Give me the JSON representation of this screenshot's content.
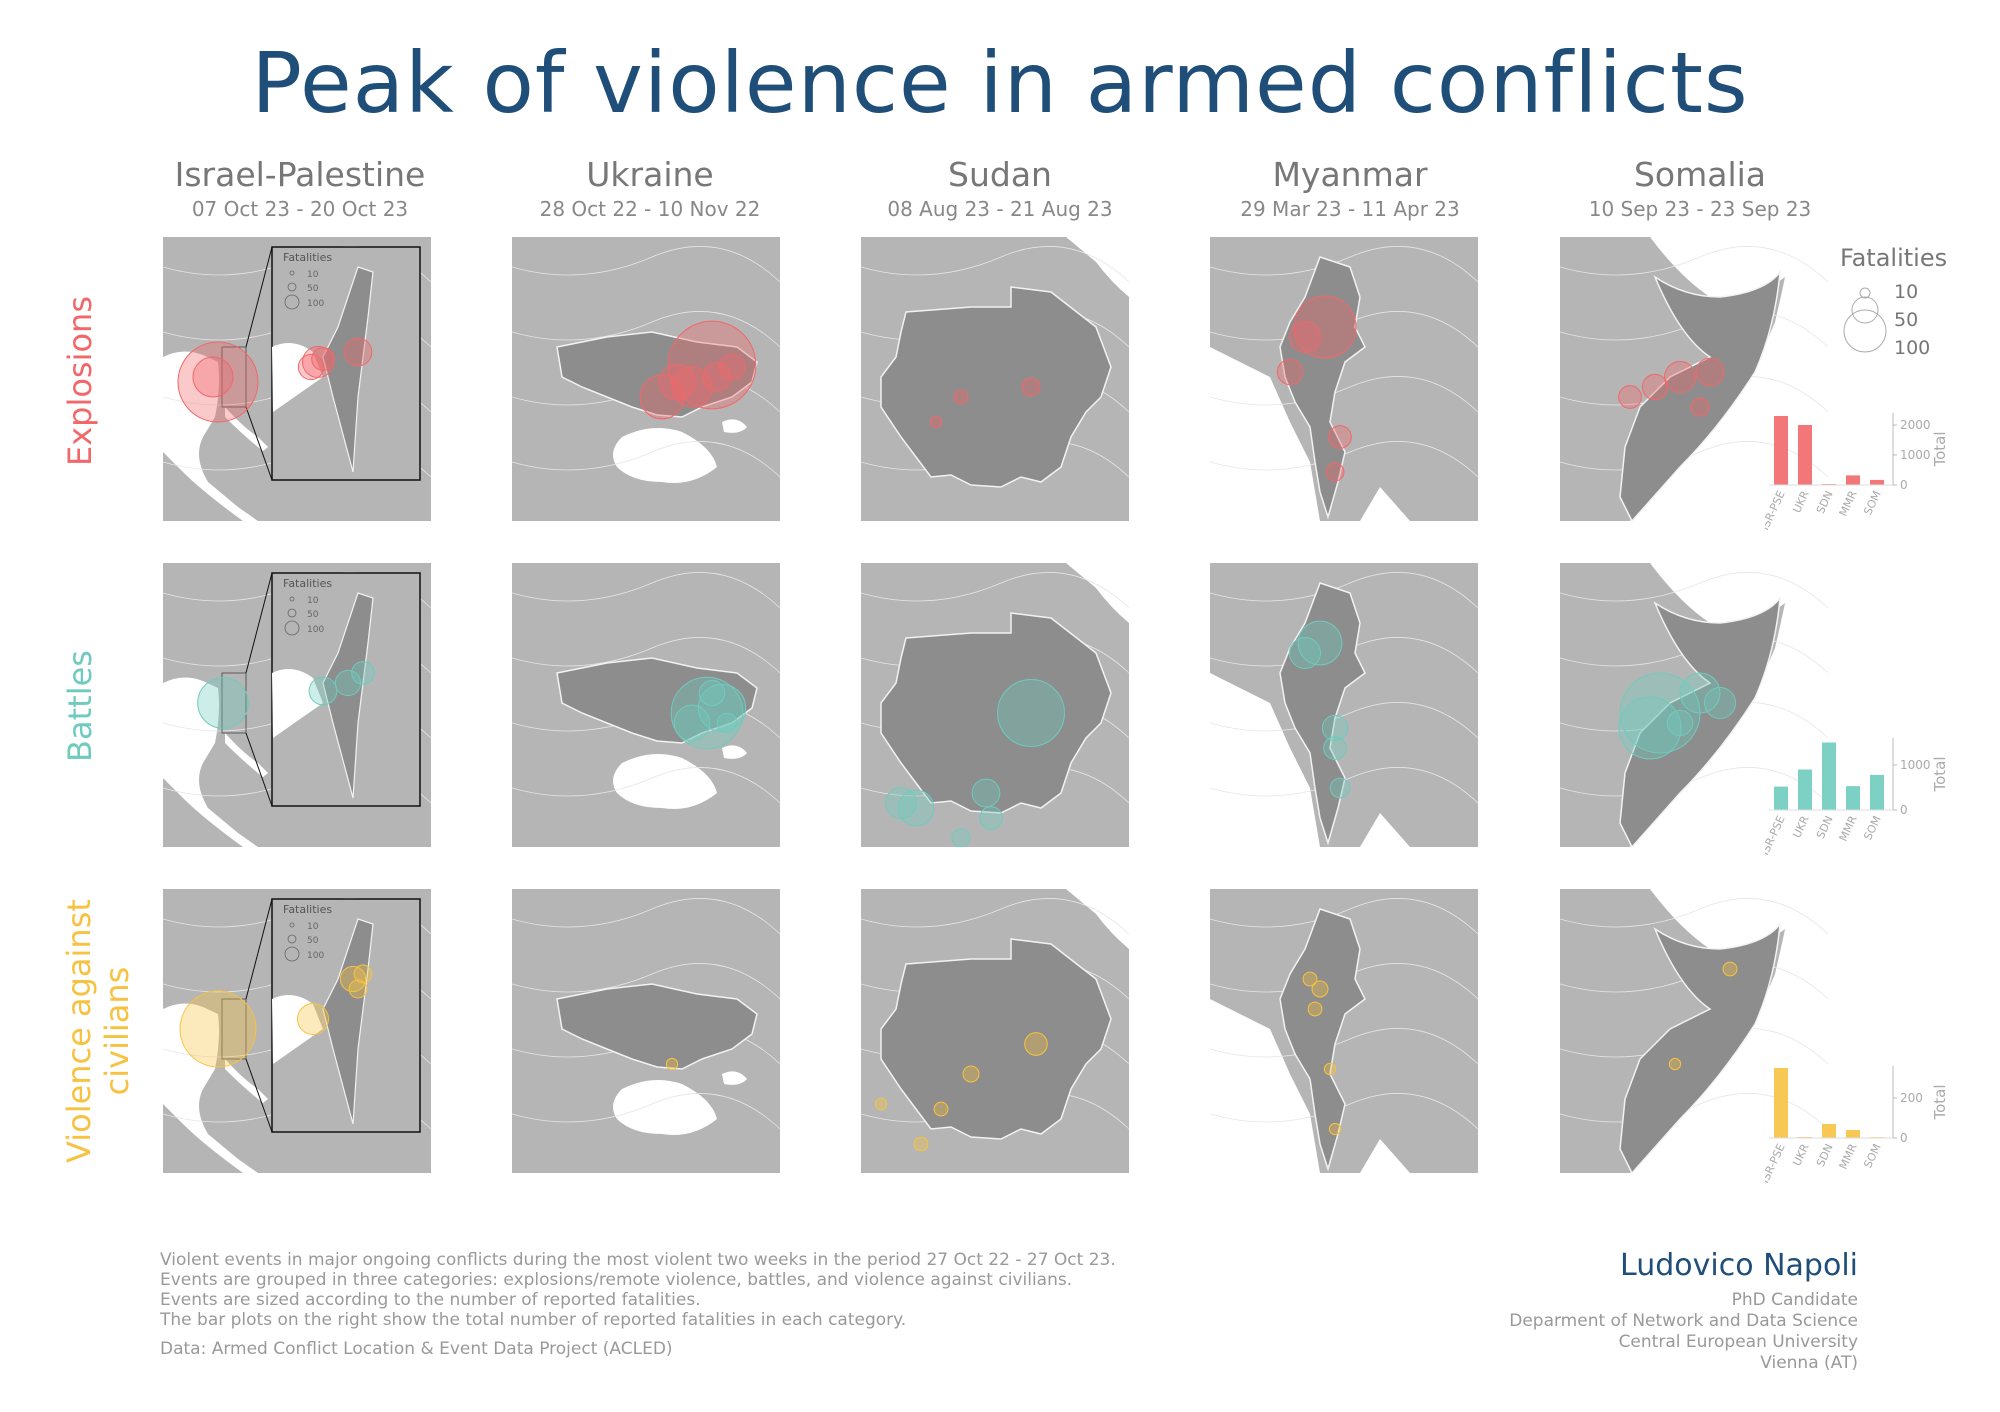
{
  "title": "Peak of violence in armed conflicts",
  "columns": [
    {
      "name": "Israel-Palestine",
      "dates": "07 Oct 23 - 20 Oct 23"
    },
    {
      "name": "Ukraine",
      "dates": "28 Oct 22 - 10 Nov 22"
    },
    {
      "name": "Sudan",
      "dates": "08 Aug 23 - 21 Aug 23"
    },
    {
      "name": "Myanmar",
      "dates": "29 Mar 23 - 11 Apr 23"
    },
    {
      "name": "Somalia",
      "dates": "10 Sep 23 - 23 Sep 23"
    }
  ],
  "rows": [
    {
      "label": "Explosions",
      "color": "#f2676a"
    },
    {
      "label": "Battles",
      "color": "#6fcbbe"
    },
    {
      "label_line1": "Violence against",
      "label_line2": "civilians",
      "color": "#f7c242"
    }
  ],
  "colors": {
    "ocean": "#adadad",
    "neighbor": "#b5b5b5",
    "country": "#8d8d8d",
    "land_border": "#e6e6e6",
    "title": "#1f4e79",
    "text_gray": "#999999"
  },
  "inset_legend": {
    "title": "Fatalities",
    "sizes": [
      "10",
      "50",
      "100"
    ]
  },
  "legend": {
    "title": "Fatalities",
    "sizes": [
      "10",
      "50",
      "100"
    ]
  },
  "chart_data": [
    {
      "type": "bar",
      "series": "Explosions",
      "categories": [
        "ISR-PSE",
        "UKR",
        "SDN",
        "MMR",
        "SOM"
      ],
      "values": [
        2300,
        2000,
        30,
        320,
        170
      ],
      "yticks": [
        "0",
        "1000",
        "2000"
      ],
      "ylabel": "Total",
      "ylim": [
        0,
        2400
      ]
    },
    {
      "type": "bar",
      "series": "Battles",
      "categories": [
        "ISR-PSE",
        "UKR",
        "SDN",
        "MMR",
        "SOM"
      ],
      "values": [
        520,
        900,
        1500,
        530,
        780
      ],
      "yticks": [
        "0",
        "1000"
      ],
      "ylabel": "Total",
      "ylim": [
        0,
        1600
      ]
    },
    {
      "type": "bar",
      "series": "Violence against civilians",
      "categories": [
        "ISR-PSE",
        "UKR",
        "SDN",
        "MMR",
        "SOM"
      ],
      "values": [
        350,
        5,
        70,
        40,
        4
      ],
      "yticks": [
        "0",
        "200"
      ],
      "ylabel": "Total",
      "ylim": [
        0,
        360
      ]
    }
  ],
  "map_events": {
    "israel_palestine": [
      {
        "category": "Explosions",
        "fatalities": [
          100,
          25,
          10,
          15,
          8,
          12
        ]
      },
      {
        "category": "Battles",
        "fatalities": [
          40,
          12,
          10,
          8
        ]
      },
      {
        "category": "Violence against civilians",
        "fatalities": [
          90,
          15,
          10,
          5,
          5
        ]
      }
    ],
    "ukraine": [
      {
        "category": "Explosions",
        "fatalities": [
          120,
          30,
          25,
          20,
          12,
          10
        ]
      },
      {
        "category": "Battles",
        "fatalities": [
          80,
          35,
          20,
          10,
          6
        ]
      },
      {
        "category": "Violence against civilians",
        "fatalities": [
          2
        ]
      }
    ],
    "sudan": [
      {
        "category": "Explosions",
        "fatalities": [
          5,
          3,
          2
        ]
      },
      {
        "category": "Battles",
        "fatalities": [
          70,
          20,
          15,
          12,
          8,
          5
        ]
      },
      {
        "category": "Violence against civilians",
        "fatalities": [
          8,
          4,
          3,
          3,
          2
        ]
      }
    ],
    "myanmar": [
      {
        "category": "Explosions",
        "fatalities": [
          60,
          15,
          10,
          8,
          5
        ]
      },
      {
        "category": "Battles",
        "fatalities": [
          30,
          15,
          10,
          8,
          6
        ]
      },
      {
        "category": "Violence against civilians",
        "fatalities": [
          4,
          3,
          3,
          2,
          2
        ]
      }
    ],
    "somalia": [
      {
        "category": "Explosions",
        "fatalities": [
          15,
          12,
          10,
          8,
          5
        ]
      },
      {
        "category": "Battles",
        "fatalities": [
          100,
          60,
          25,
          15,
          10
        ]
      },
      {
        "category": "Violence against civilians",
        "fatalities": [
          3,
          2
        ]
      }
    ]
  },
  "footer": {
    "notes": [
      "Violent events in major ongoing conflicts during the most violent two weeks in the period 27 Oct 22 - 27 Oct 23.",
      "Events are grouped in three categories: explosions/remote violence, battles, and violence against civilians.",
      "Events are sized according to the number of reported fatalities.",
      "The bar plots on the right show the total number of reported fatalities in each category."
    ],
    "source": "Data: Armed Conflict Location & Event Data Project (ACLED)"
  },
  "author": {
    "name": "Ludovico Napoli",
    "lines": [
      "PhD Candidate",
      "Deparment of Network and Data Science",
      "Central European University",
      "Vienna (AT)"
    ]
  }
}
